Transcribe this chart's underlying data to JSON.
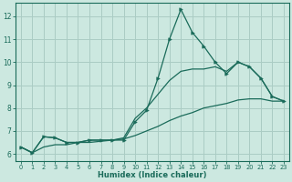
{
  "xlabel": "Humidex (Indice chaleur)",
  "xlim": [
    -0.5,
    23.5
  ],
  "ylim": [
    5.7,
    12.6
  ],
  "xticks": [
    0,
    1,
    2,
    3,
    4,
    5,
    6,
    7,
    8,
    9,
    10,
    11,
    12,
    13,
    14,
    15,
    16,
    17,
    18,
    19,
    20,
    21,
    22,
    23
  ],
  "yticks": [
    6,
    7,
    8,
    9,
    10,
    11,
    12
  ],
  "bg_color": "#cce8e0",
  "grid_color": "#aaccc4",
  "line_color": "#1a6b5a",
  "x": [
    0,
    1,
    2,
    3,
    4,
    5,
    6,
    7,
    8,
    9,
    10,
    11,
    12,
    13,
    14,
    15,
    16,
    17,
    18,
    19,
    20,
    21,
    22,
    23
  ],
  "y_main": [
    6.3,
    6.05,
    6.75,
    6.7,
    6.5,
    6.5,
    6.6,
    6.6,
    6.6,
    6.6,
    7.4,
    7.9,
    9.3,
    11.0,
    12.3,
    11.3,
    10.7,
    10.0,
    9.5,
    10.0,
    9.8,
    9.3,
    8.5,
    8.3
  ],
  "y_min": [
    6.3,
    6.05,
    6.3,
    6.4,
    6.4,
    6.5,
    6.5,
    6.55,
    6.6,
    6.65,
    6.8,
    7.0,
    7.2,
    7.45,
    7.65,
    7.8,
    8.0,
    8.1,
    8.2,
    8.35,
    8.4,
    8.4,
    8.3,
    8.3
  ],
  "y_max": [
    6.3,
    6.05,
    6.75,
    6.7,
    6.5,
    6.5,
    6.6,
    6.6,
    6.6,
    6.7,
    7.55,
    8.0,
    8.6,
    9.2,
    9.6,
    9.7,
    9.7,
    9.8,
    9.6,
    10.0,
    9.8,
    9.3,
    8.5,
    8.3
  ]
}
